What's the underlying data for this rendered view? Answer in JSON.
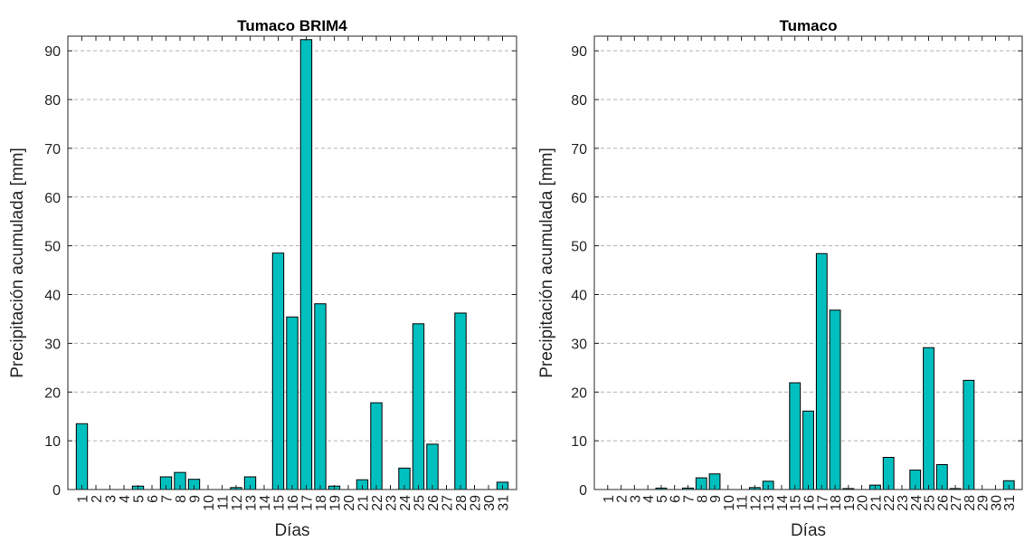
{
  "chart_data": [
    {
      "type": "bar",
      "title": "Tumaco BRIM4",
      "xlabel": "Días",
      "ylabel": "Precipitación acumulada [mm]",
      "ylim": [
        0,
        93
      ],
      "yticks": [
        0,
        10,
        20,
        30,
        40,
        50,
        60,
        70,
        80,
        90
      ],
      "grid": "horizontal-dashed",
      "bar_color": "#00BFBF",
      "categories": [
        "1",
        "2",
        "3",
        "4",
        "5",
        "6",
        "7",
        "8",
        "9",
        "10",
        "11",
        "12",
        "13",
        "14",
        "15",
        "16",
        "17",
        "18",
        "19",
        "20",
        "21",
        "22",
        "23",
        "24",
        "25",
        "26",
        "27",
        "28",
        "29",
        "30",
        "31"
      ],
      "values": [
        13.5,
        0,
        0,
        0,
        0.7,
        0,
        2.6,
        3.5,
        2.1,
        0,
        0,
        0.4,
        2.6,
        0,
        48.5,
        35.4,
        92.3,
        38.1,
        0.7,
        0,
        2.0,
        17.8,
        0,
        4.4,
        34.0,
        9.3,
        0,
        36.2,
        0,
        0,
        1.5
      ]
    },
    {
      "type": "bar",
      "title": "Tumaco",
      "xlabel": "Días",
      "ylabel": "Precipitación acumulada [mm]",
      "ylim": [
        0,
        93
      ],
      "yticks": [
        0,
        10,
        20,
        30,
        40,
        50,
        60,
        70,
        80,
        90
      ],
      "grid": "horizontal-dashed",
      "bar_color": "#00BFBF",
      "categories": [
        "1",
        "2",
        "3",
        "4",
        "5",
        "6",
        "7",
        "8",
        "9",
        "10",
        "11",
        "12",
        "13",
        "14",
        "15",
        "16",
        "17",
        "18",
        "19",
        "20",
        "21",
        "22",
        "23",
        "24",
        "25",
        "26",
        "27",
        "28",
        "29",
        "30",
        "31"
      ],
      "values": [
        0,
        0,
        0,
        0,
        0.3,
        0,
        0.3,
        2.4,
        3.2,
        0,
        0,
        0.4,
        1.7,
        0,
        21.9,
        16.1,
        48.4,
        36.8,
        0.2,
        0,
        0.9,
        6.6,
        0,
        4.0,
        29.1,
        5.1,
        0.2,
        22.4,
        0,
        0,
        1.8
      ]
    }
  ]
}
